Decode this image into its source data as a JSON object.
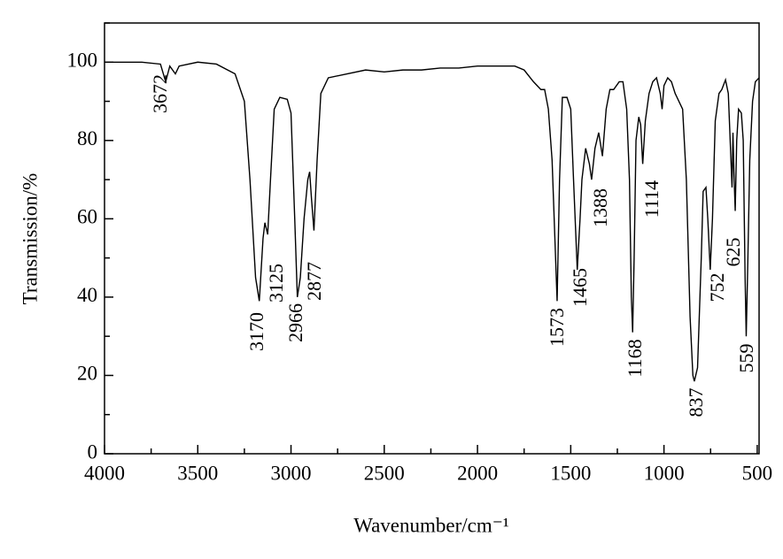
{
  "chart_data": {
    "type": "line",
    "x_label": "Wavenumber/cm⁻¹",
    "y_label": "Transmission/%",
    "xlim": [
      4000,
      490
    ],
    "ylim": [
      0,
      110
    ],
    "xticks": [
      4000,
      3500,
      3000,
      2500,
      2000,
      1500,
      1000,
      500
    ],
    "xminorticks": [
      3750,
      3250,
      2750,
      2250,
      1750,
      1250,
      750
    ],
    "yticks": [
      0,
      20,
      40,
      60,
      80,
      100
    ],
    "yminorticks": [
      10,
      30,
      50,
      70,
      90,
      110
    ],
    "color": "#000000",
    "x": [
      4000,
      3800,
      3700,
      3672,
      3650,
      3620,
      3600,
      3500,
      3400,
      3300,
      3250,
      3220,
      3190,
      3170,
      3150,
      3140,
      3125,
      3110,
      3090,
      3060,
      3020,
      3000,
      2980,
      2966,
      2950,
      2930,
      2910,
      2900,
      2890,
      2877,
      2860,
      2840,
      2800,
      2700,
      2600,
      2500,
      2400,
      2300,
      2200,
      2100,
      2000,
      1900,
      1800,
      1750,
      1700,
      1660,
      1640,
      1620,
      1600,
      1585,
      1573,
      1560,
      1545,
      1520,
      1500,
      1485,
      1465,
      1450,
      1440,
      1420,
      1400,
      1388,
      1370,
      1350,
      1330,
      1310,
      1290,
      1270,
      1240,
      1220,
      1200,
      1185,
      1175,
      1168,
      1160,
      1150,
      1135,
      1125,
      1114,
      1100,
      1080,
      1060,
      1040,
      1020,
      1010,
      1000,
      980,
      960,
      940,
      920,
      900,
      880,
      860,
      845,
      837,
      820,
      800,
      790,
      775,
      765,
      752,
      740,
      725,
      705,
      690,
      670,
      655,
      645,
      635,
      630,
      625,
      618,
      610,
      600,
      585,
      575,
      565,
      559,
      550,
      540,
      525,
      510,
      500,
      490
    ],
    "values": [
      100,
      100,
      99.5,
      95,
      99,
      97,
      99,
      100,
      99.5,
      97,
      90,
      70,
      45,
      39,
      55,
      59,
      56,
      70,
      88,
      91,
      90.5,
      87,
      60,
      40,
      45,
      60,
      70,
      72,
      65,
      57,
      75,
      92,
      96,
      97,
      98,
      97.5,
      98,
      98,
      98.5,
      98.5,
      99,
      99,
      99,
      98,
      95,
      93,
      93,
      88,
      75,
      55,
      39,
      70,
      91,
      91,
      88,
      70,
      47,
      60,
      70,
      78,
      74,
      70,
      78,
      82,
      76,
      88,
      93,
      93,
      95,
      95,
      88,
      70,
      40,
      31,
      50,
      80,
      86,
      84,
      74,
      85,
      92,
      95,
      96,
      92,
      88,
      94,
      96,
      95,
      92,
      90,
      88,
      70,
      35,
      20,
      18.5,
      22,
      50,
      67,
      68,
      60,
      47,
      60,
      85,
      92,
      93,
      95.5,
      92,
      80,
      68,
      82,
      72,
      62,
      80,
      88,
      87,
      80,
      45,
      30,
      50,
      75,
      90,
      95,
      95.5,
      96
    ],
    "annotations": [
      "3672",
      "3170",
      "3125",
      "2966",
      "2877",
      "1573",
      "1465",
      "1388",
      "1168",
      "1114",
      "837",
      "752",
      "625",
      "559"
    ]
  }
}
